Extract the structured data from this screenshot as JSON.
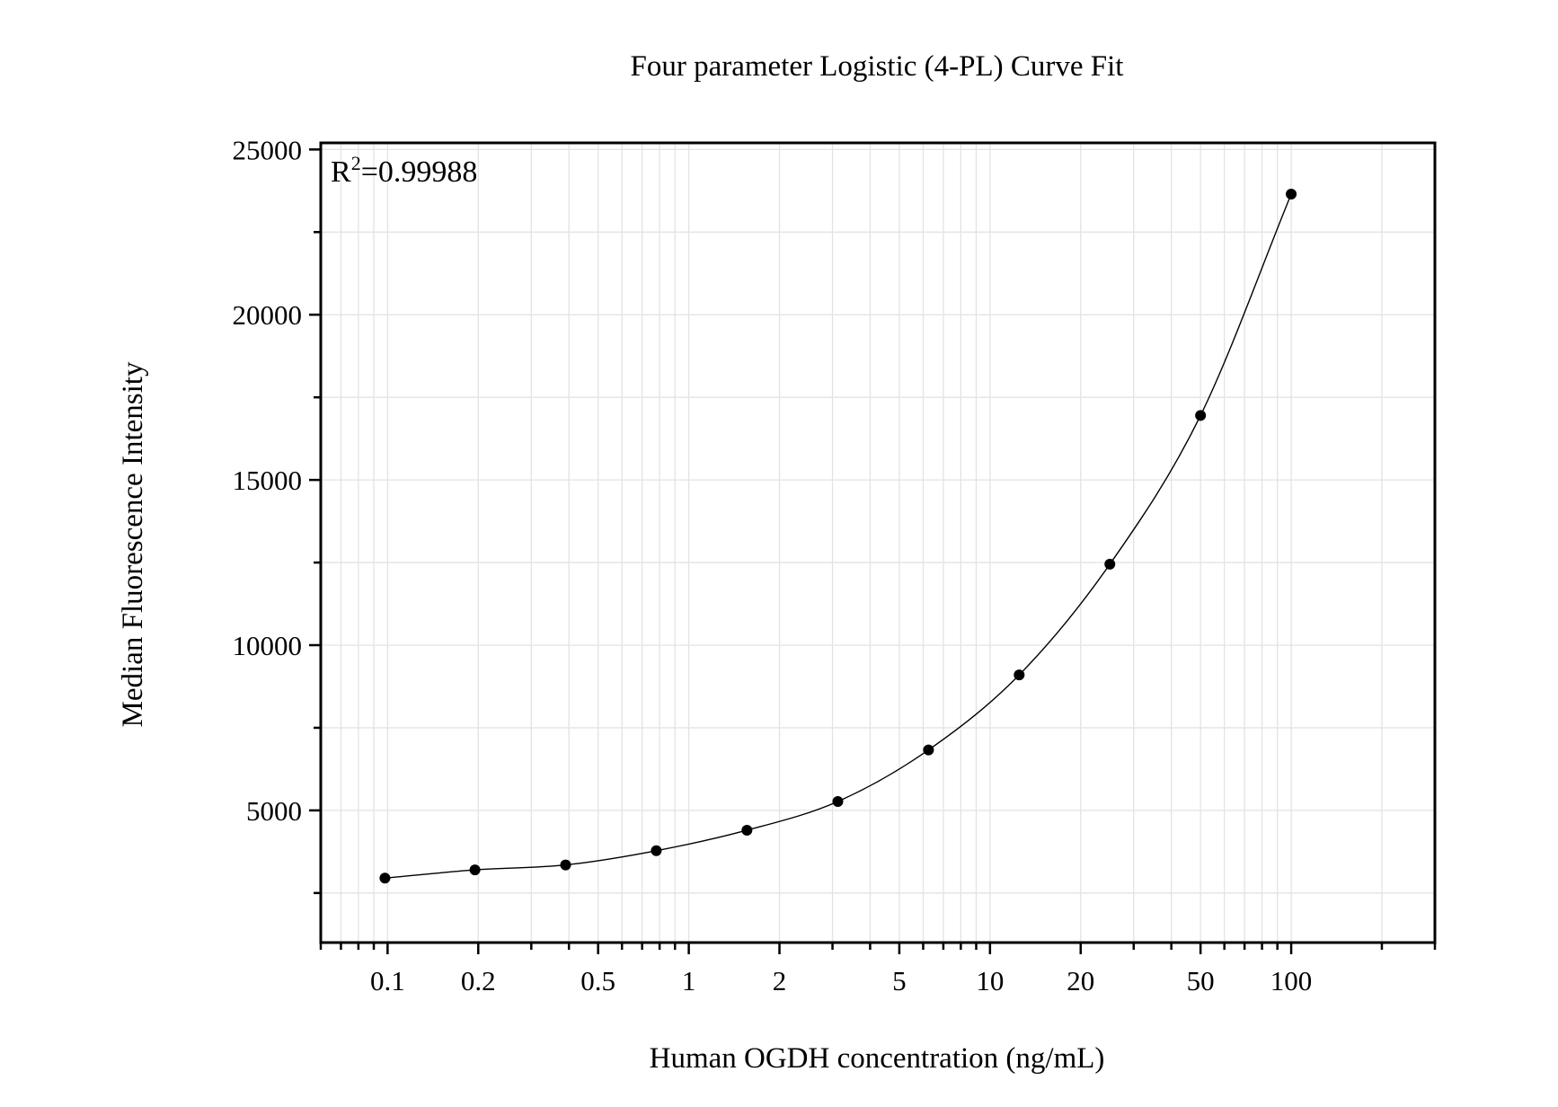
{
  "chart_data": {
    "type": "scatter",
    "title": "Four parameter Logistic (4-PL) Curve Fit",
    "xlabel": "Human OGDH concentration (ng/mL)",
    "ylabel": "Median Fluorescence Intensity",
    "annotation": {
      "prefix": "R",
      "superscript": "2",
      "value": "=0.99988"
    },
    "x_scale": "log",
    "xlim": [
      0.06,
      300
    ],
    "ylim": [
      1000,
      25200
    ],
    "x_ticks": [
      {
        "value": 0.1,
        "label": "0.1"
      },
      {
        "value": 0.2,
        "label": "0.2"
      },
      {
        "value": 0.5,
        "label": "0.5"
      },
      {
        "value": 1,
        "label": "1"
      },
      {
        "value": 2,
        "label": "2"
      },
      {
        "value": 5,
        "label": "5"
      },
      {
        "value": 10,
        "label": "10"
      },
      {
        "value": 20,
        "label": "20"
      },
      {
        "value": 50,
        "label": "50"
      },
      {
        "value": 100,
        "label": "100"
      }
    ],
    "y_ticks": [
      {
        "value": 5000,
        "label": "5000"
      },
      {
        "value": 10000,
        "label": "10000"
      },
      {
        "value": 15000,
        "label": "15000"
      },
      {
        "value": 20000,
        "label": "20000"
      },
      {
        "value": 25000,
        "label": "25000"
      }
    ],
    "y_minor_ticks": [
      2500,
      7500,
      12500,
      17500,
      22500
    ],
    "grid": true,
    "points": [
      {
        "x": 0.098,
        "y": 2950
      },
      {
        "x": 0.195,
        "y": 3200
      },
      {
        "x": 0.39,
        "y": 3350
      },
      {
        "x": 0.78,
        "y": 3780
      },
      {
        "x": 1.56,
        "y": 4400
      },
      {
        "x": 3.125,
        "y": 5270
      },
      {
        "x": 6.25,
        "y": 6830
      },
      {
        "x": 12.5,
        "y": 9100
      },
      {
        "x": 25,
        "y": 12450
      },
      {
        "x": 50,
        "y": 16950
      },
      {
        "x": 100,
        "y": 23650
      }
    ],
    "point_color": "#000000",
    "line_color": "#000000"
  }
}
